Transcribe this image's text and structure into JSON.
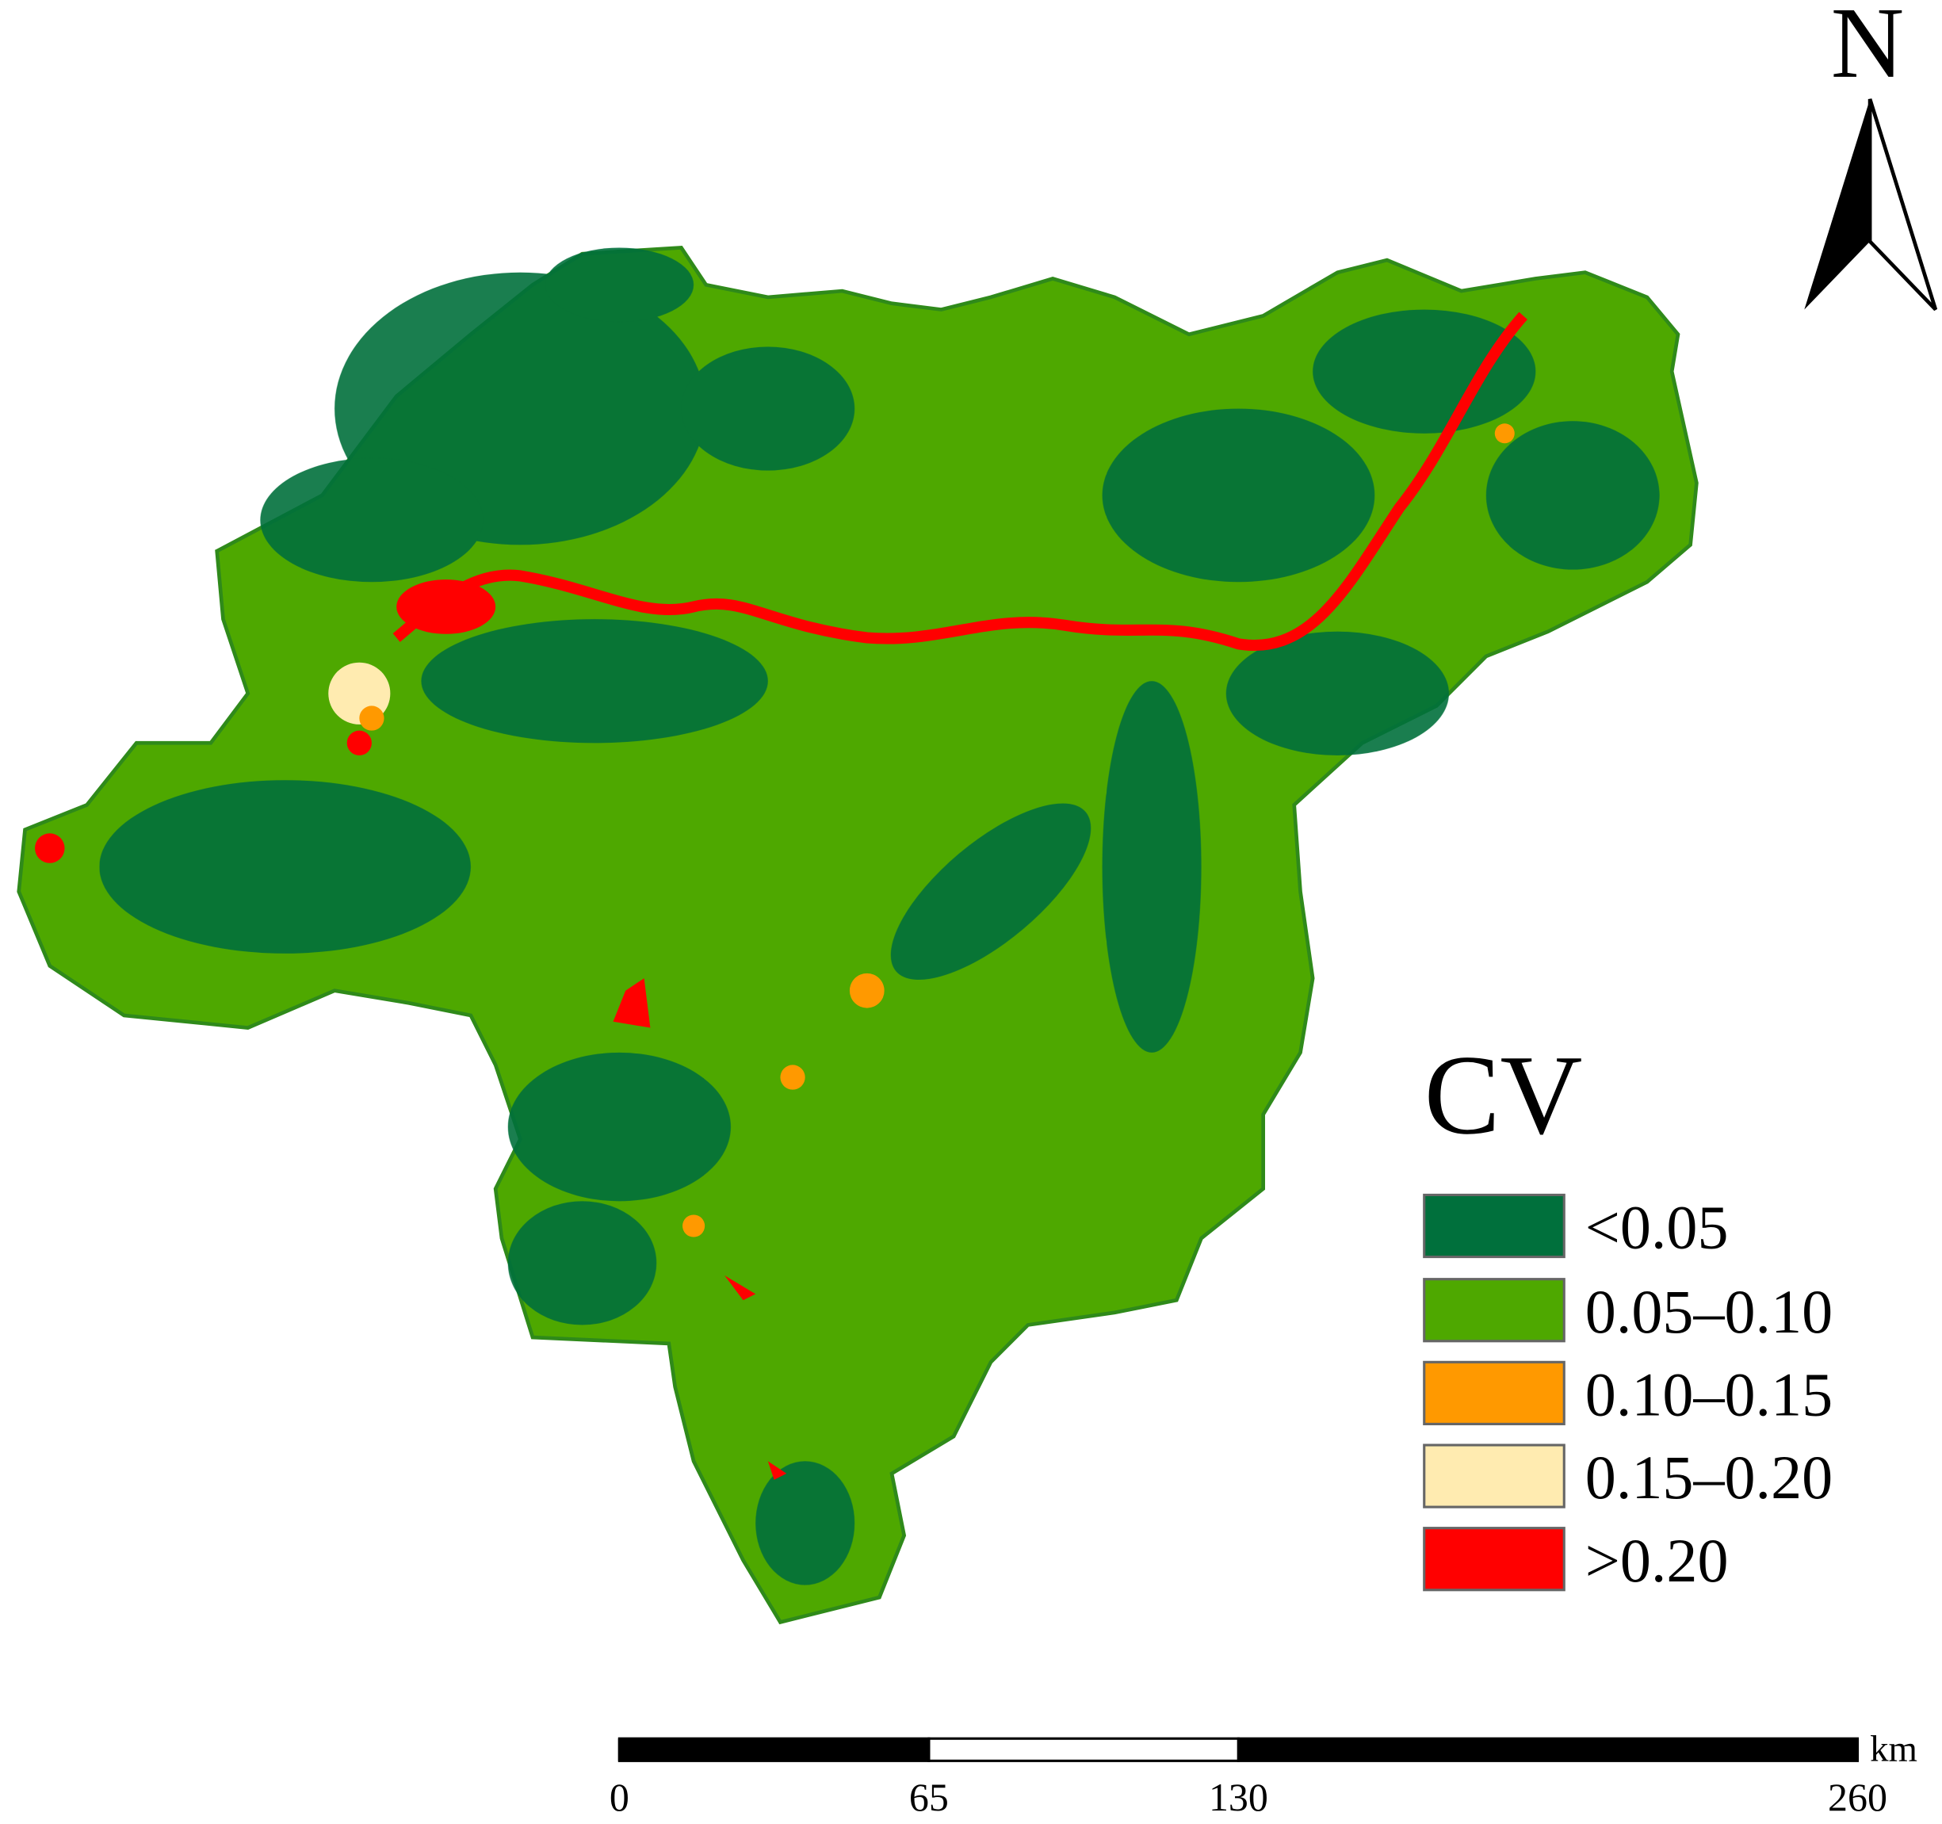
{
  "north": {
    "label": "N"
  },
  "legend": {
    "title": "CV",
    "items": [
      {
        "label": "<0.05",
        "color": "#00703c"
      },
      {
        "label": "0.05–0.10",
        "color": "#4ea800"
      },
      {
        "label": "0.10–0.15",
        "color": "#ff9900"
      },
      {
        "label": "0.15–0.20",
        "color": "#ffebb0"
      },
      {
        "label": ">0.20",
        "color": "#ff0000"
      }
    ]
  },
  "scale_bar": {
    "unit": "km",
    "ticks": [
      0,
      65,
      130,
      260
    ]
  }
}
